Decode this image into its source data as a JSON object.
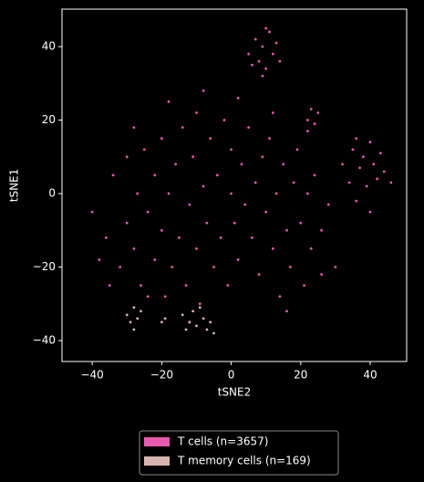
{
  "chart_data": {
    "type": "scatter",
    "xlabel": "tSNE2",
    "ylabel": "tSNE1",
    "xlim": [
      -48.7,
      50.5
    ],
    "ylim": [
      -45.7,
      50.2
    ],
    "xticks": [
      {
        "value": -40,
        "label": "−40"
      },
      {
        "value": -20,
        "label": "−20"
      },
      0,
      20,
      40
    ],
    "yticks": [
      {
        "value": -40,
        "label": "−40"
      },
      {
        "value": -20,
        "label": "−20"
      },
      0,
      20,
      40
    ],
    "legend": "bottom",
    "series": [
      {
        "name": "T cells (n=3657)",
        "color": "#e85aad",
        "x": [
          -40,
          -36,
          -34,
          -32,
          -30,
          -30,
          -28,
          -27,
          -26,
          -25,
          -24,
          -22,
          -22,
          -20,
          -20,
          -19,
          -18,
          -17,
          -16,
          -15,
          -14,
          -13,
          -12,
          -11,
          -10,
          -10,
          -9,
          -8,
          -7,
          -6,
          -5,
          -4,
          -3,
          -2,
          -1,
          0,
          0,
          1,
          2,
          3,
          4,
          5,
          6,
          7,
          8,
          9,
          10,
          11,
          12,
          13,
          14,
          15,
          16,
          17,
          18,
          19,
          20,
          21,
          22,
          23,
          24,
          26,
          28,
          30,
          -38,
          -35,
          -28,
          -18,
          -8,
          2,
          12,
          -24,
          -12,
          16,
          26,
          5,
          7,
          8,
          9,
          10,
          11,
          12,
          13,
          6,
          14,
          9,
          10,
          32,
          34,
          35,
          36,
          37,
          38,
          39,
          40,
          41,
          42,
          43,
          44,
          40,
          36,
          46,
          22,
          23,
          24,
          25,
          22
        ],
        "values": [
          -5,
          -12,
          5,
          -20,
          -8,
          10,
          -15,
          0,
          -25,
          12,
          -5,
          -18,
          5,
          -10,
          15,
          -28,
          0,
          -20,
          8,
          -12,
          18,
          -25,
          -3,
          10,
          -15,
          22,
          -30,
          2,
          -8,
          15,
          -20,
          5,
          -12,
          20,
          -25,
          0,
          12,
          -8,
          -18,
          8,
          -3,
          18,
          -12,
          3,
          -22,
          10,
          -5,
          15,
          -15,
          0,
          -28,
          8,
          -10,
          -20,
          3,
          12,
          -8,
          -25,
          0,
          -15,
          5,
          -10,
          -3,
          -20,
          -18,
          -25,
          18,
          25,
          28,
          26,
          22,
          -28,
          -35,
          -32,
          -22,
          38,
          42,
          36,
          40,
          34,
          44,
          38,
          41,
          35,
          36,
          32,
          45,
          8,
          3,
          12,
          -2,
          7,
          10,
          2,
          -5,
          8,
          4,
          11,
          6,
          14,
          15,
          3,
          20,
          23,
          19,
          22,
          17
        ]
      },
      {
        "name": "T memory cells (n=169)",
        "color": "#d8b4b0",
        "x": [
          -30,
          -29,
          -28,
          -27,
          -26,
          -28,
          -20,
          -19,
          -14,
          -12,
          -11,
          -10,
          -8,
          -7,
          -6,
          -9,
          -13,
          -5
        ],
        "values": [
          -33,
          -35,
          -31,
          -34,
          -32,
          -37,
          -35,
          -34,
          -33,
          -35,
          -32,
          -36,
          -34,
          -37,
          -35,
          -31,
          -37,
          -38
        ]
      }
    ]
  }
}
